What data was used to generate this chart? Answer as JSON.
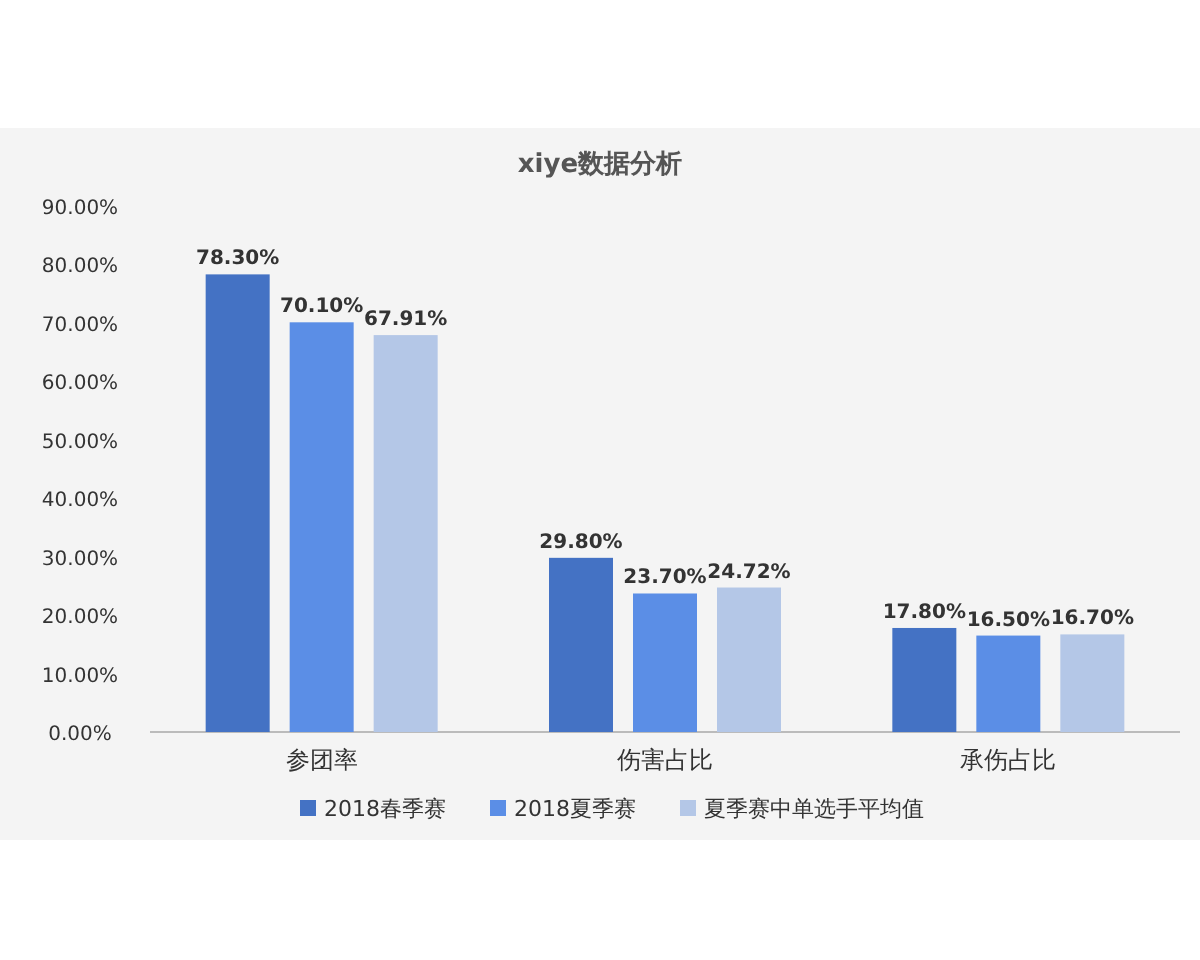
{
  "chart_data": {
    "type": "bar",
    "title": "xiye数据分析",
    "categories": [
      "参团率",
      "伤害占比",
      "承伤占比"
    ],
    "series": [
      {
        "name": "2018春季赛",
        "color": "#4472c4",
        "values": [
          78.3,
          29.8,
          17.8
        ],
        "value_labels": [
          "78.30%",
          "29.80%",
          "17.80%"
        ]
      },
      {
        "name": "2018夏季赛",
        "color": "#5b8ee6",
        "values": [
          70.1,
          23.7,
          16.5
        ],
        "value_labels": [
          "70.10%",
          "23.70%",
          "16.50%"
        ]
      },
      {
        "name": "夏季赛中单选手平均值",
        "color": "#b4c7e7",
        "values": [
          67.91,
          24.72,
          16.7
        ],
        "value_labels": [
          "67.91%",
          "24.72%",
          "16.70%"
        ]
      }
    ],
    "ylim": [
      0,
      90
    ],
    "yticks": [
      {
        "value": 0,
        "label": "0.00%"
      },
      {
        "value": 10,
        "label": "10.00%"
      },
      {
        "value": 20,
        "label": "20.00%"
      },
      {
        "value": 30,
        "label": "30.00%"
      },
      {
        "value": 40,
        "label": "40.00%"
      },
      {
        "value": 50,
        "label": "50.00%"
      },
      {
        "value": 60,
        "label": "60.00%"
      },
      {
        "value": 70,
        "label": "70.00%"
      },
      {
        "value": 80,
        "label": "80.00%"
      },
      {
        "value": 90,
        "label": "90.00%"
      }
    ],
    "grid": false,
    "legend": "bottom"
  }
}
